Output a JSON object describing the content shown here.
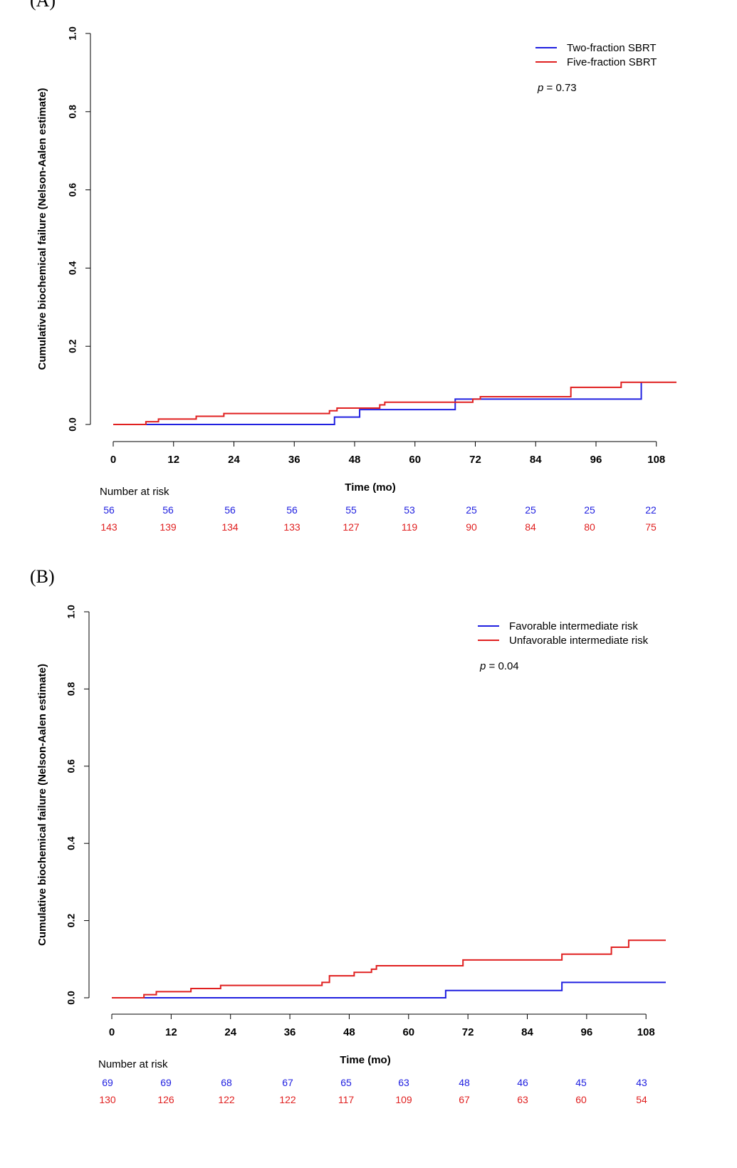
{
  "chart_data": [
    {
      "type": "line",
      "panel_label": "(A)",
      "xlabel": "Time (mo)",
      "ylabel": "Cumulative biochemical failure (Nelson-Aalen estimate)",
      "xlim": [
        0,
        112
      ],
      "ylim": [
        0,
        1.0
      ],
      "xticks": [
        "0",
        "12",
        "24",
        "36",
        "48",
        "60",
        "72",
        "84",
        "96",
        "108"
      ],
      "yticks": [
        "0.0",
        "0.2",
        "0.4",
        "0.6",
        "0.8",
        "1.0"
      ],
      "legend_position": "top-right",
      "p_label": "p",
      "p_text": " = 0.73",
      "risk_title": "Number at risk",
      "series": [
        {
          "name": "Two-fraction SBRT",
          "color": "#2020e0",
          "steps": [
            [
              0,
              0
            ],
            [
              44,
              0.019
            ],
            [
              49,
              0.038
            ],
            [
              68,
              0.065
            ],
            [
              105,
              0.109
            ],
            [
              105,
              0.109
            ]
          ],
          "end_x": 105,
          "risk": [
            "56",
            "56",
            "56",
            "56",
            "55",
            "53",
            "25",
            "25",
            "25",
            "22"
          ]
        },
        {
          "name": "Five-fraction SBRT",
          "color": "#e02020",
          "steps": [
            [
              0,
              0
            ],
            [
              6.5,
              0.007
            ],
            [
              9,
              0.014
            ],
            [
              16.5,
              0.021
            ],
            [
              22,
              0.028
            ],
            [
              43,
              0.035
            ],
            [
              44.5,
              0.042
            ],
            [
              53,
              0.05
            ],
            [
              54,
              0.057
            ],
            [
              71.5,
              0.065
            ],
            [
              73,
              0.071
            ],
            [
              91,
              0.095
            ],
            [
              101,
              0.108
            ]
          ],
          "end_x": 112,
          "risk": [
            "143",
            "139",
            "134",
            "133",
            "127",
            "119",
            "90",
            "84",
            "80",
            "75"
          ]
        }
      ]
    },
    {
      "type": "line",
      "panel_label": "(B)",
      "xlabel": "Time (mo)",
      "ylabel": "Cumulative biochemical failure (Nelson-Aalen estimate)",
      "xlim": [
        0,
        112
      ],
      "ylim": [
        0,
        1.0
      ],
      "xticks": [
        "0",
        "12",
        "24",
        "36",
        "48",
        "60",
        "72",
        "84",
        "96",
        "108"
      ],
      "yticks": [
        "0.0",
        "0.2",
        "0.4",
        "0.6",
        "0.8",
        "1.0"
      ],
      "legend_position": "top-right",
      "p_label": "p",
      "p_text": " = 0.04",
      "risk_title": "Number at risk",
      "series": [
        {
          "name": "Favorable intermediate risk",
          "color": "#2020e0",
          "steps": [
            [
              0,
              0
            ],
            [
              67.5,
              0.019
            ],
            [
              91,
              0.04
            ]
          ],
          "end_x": 112,
          "risk": [
            "69",
            "69",
            "68",
            "67",
            "65",
            "63",
            "48",
            "46",
            "45",
            "43"
          ]
        },
        {
          "name": "Unfavorable intermediate risk",
          "color": "#e02020",
          "steps": [
            [
              0,
              0
            ],
            [
              6.5,
              0.008
            ],
            [
              9,
              0.016
            ],
            [
              16,
              0.024
            ],
            [
              22,
              0.032
            ],
            [
              42.5,
              0.04
            ],
            [
              44,
              0.057
            ],
            [
              49,
              0.066
            ],
            [
              52.5,
              0.074
            ],
            [
              53.5,
              0.083
            ],
            [
              71,
              0.098
            ],
            [
              91,
              0.113
            ],
            [
              101,
              0.131
            ],
            [
              104.5,
              0.149
            ]
          ],
          "end_x": 112,
          "risk": [
            "130",
            "126",
            "122",
            "122",
            "117",
            "109",
            "67",
            "63",
            "60",
            "54"
          ]
        }
      ]
    }
  ]
}
